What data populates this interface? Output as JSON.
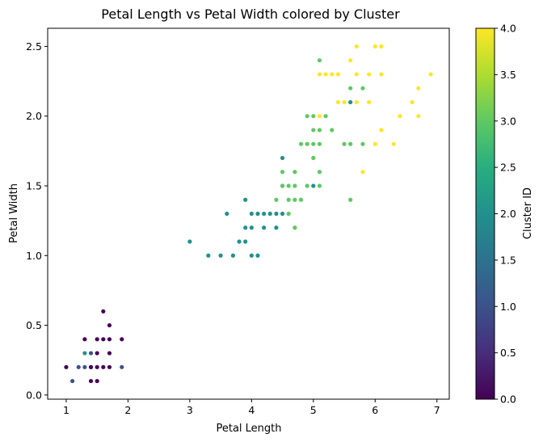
{
  "chart_data": {
    "type": "scatter",
    "title": "Petal Length vs Petal Width colored by Cluster",
    "xlabel": "Petal Length",
    "ylabel": "Petal Width",
    "xlim": [
      0.7,
      7.2
    ],
    "ylim": [
      -0.03,
      2.63
    ],
    "xticks": [
      "1",
      "2",
      "3",
      "4",
      "5",
      "6",
      "7"
    ],
    "yticks": [
      "0.0",
      "0.5",
      "1.0",
      "1.5",
      "2.0",
      "2.5"
    ],
    "colorbar": {
      "label": "Cluster ID",
      "colormap": "viridis",
      "range": [
        0,
        4
      ],
      "ticks": [
        "0.0",
        "0.5",
        "1.0",
        "1.5",
        "2.0",
        "2.5",
        "3.0",
        "3.5",
        "4.0"
      ]
    },
    "points": [
      {
        "x": 1.0,
        "y": 0.2,
        "c": 0
      },
      {
        "x": 1.1,
        "y": 0.1,
        "c": 1
      },
      {
        "x": 1.2,
        "y": 0.2,
        "c": 1
      },
      {
        "x": 1.3,
        "y": 0.2,
        "c": 1
      },
      {
        "x": 1.3,
        "y": 0.3,
        "c": 2
      },
      {
        "x": 1.3,
        "y": 0.4,
        "c": 0
      },
      {
        "x": 1.4,
        "y": 0.1,
        "c": 0
      },
      {
        "x": 1.4,
        "y": 0.2,
        "c": 1
      },
      {
        "x": 1.4,
        "y": 0.3,
        "c": 1
      },
      {
        "x": 1.4,
        "y": 0.2,
        "c": 0
      },
      {
        "x": 1.5,
        "y": 0.1,
        "c": 0
      },
      {
        "x": 1.5,
        "y": 0.2,
        "c": 0
      },
      {
        "x": 1.5,
        "y": 0.3,
        "c": 0
      },
      {
        "x": 1.5,
        "y": 0.4,
        "c": 0
      },
      {
        "x": 1.6,
        "y": 0.2,
        "c": 0
      },
      {
        "x": 1.6,
        "y": 0.4,
        "c": 0
      },
      {
        "x": 1.6,
        "y": 0.6,
        "c": 0
      },
      {
        "x": 1.7,
        "y": 0.2,
        "c": 0
      },
      {
        "x": 1.7,
        "y": 0.3,
        "c": 0
      },
      {
        "x": 1.7,
        "y": 0.4,
        "c": 0
      },
      {
        "x": 1.7,
        "y": 0.5,
        "c": 0
      },
      {
        "x": 1.9,
        "y": 0.2,
        "c": 1
      },
      {
        "x": 1.9,
        "y": 0.4,
        "c": 0
      },
      {
        "x": 3.0,
        "y": 1.1,
        "c": 2
      },
      {
        "x": 3.3,
        "y": 1.0,
        "c": 2
      },
      {
        "x": 3.5,
        "y": 1.0,
        "c": 2
      },
      {
        "x": 3.6,
        "y": 1.3,
        "c": 2
      },
      {
        "x": 3.7,
        "y": 1.0,
        "c": 2
      },
      {
        "x": 3.8,
        "y": 1.1,
        "c": 2
      },
      {
        "x": 3.9,
        "y": 1.1,
        "c": 2
      },
      {
        "x": 3.9,
        "y": 1.2,
        "c": 2
      },
      {
        "x": 3.9,
        "y": 1.4,
        "c": 2
      },
      {
        "x": 4.0,
        "y": 1.0,
        "c": 2
      },
      {
        "x": 4.0,
        "y": 1.2,
        "c": 2
      },
      {
        "x": 4.0,
        "y": 1.3,
        "c": 2
      },
      {
        "x": 4.1,
        "y": 1.0,
        "c": 2
      },
      {
        "x": 4.1,
        "y": 1.3,
        "c": 2
      },
      {
        "x": 4.2,
        "y": 1.2,
        "c": 2
      },
      {
        "x": 4.2,
        "y": 1.3,
        "c": 2
      },
      {
        "x": 4.3,
        "y": 1.3,
        "c": 2
      },
      {
        "x": 4.4,
        "y": 1.2,
        "c": 2
      },
      {
        "x": 4.4,
        "y": 1.3,
        "c": 2
      },
      {
        "x": 4.4,
        "y": 1.4,
        "c": 3
      },
      {
        "x": 4.5,
        "y": 1.3,
        "c": 2
      },
      {
        "x": 4.5,
        "y": 1.5,
        "c": 2
      },
      {
        "x": 4.5,
        "y": 1.6,
        "c": 3
      },
      {
        "x": 4.5,
        "y": 1.7,
        "c": 2
      },
      {
        "x": 4.5,
        "y": 1.5,
        "c": 3
      },
      {
        "x": 4.6,
        "y": 1.3,
        "c": 3
      },
      {
        "x": 4.6,
        "y": 1.4,
        "c": 3
      },
      {
        "x": 4.6,
        "y": 1.5,
        "c": 3
      },
      {
        "x": 4.7,
        "y": 1.2,
        "c": 3
      },
      {
        "x": 4.7,
        "y": 1.4,
        "c": 3
      },
      {
        "x": 4.7,
        "y": 1.5,
        "c": 3
      },
      {
        "x": 4.7,
        "y": 1.6,
        "c": 3
      },
      {
        "x": 4.8,
        "y": 1.4,
        "c": 3
      },
      {
        "x": 4.8,
        "y": 1.8,
        "c": 3
      },
      {
        "x": 4.9,
        "y": 1.5,
        "c": 3
      },
      {
        "x": 4.9,
        "y": 1.8,
        "c": 3
      },
      {
        "x": 4.9,
        "y": 2.0,
        "c": 3
      },
      {
        "x": 5.0,
        "y": 1.5,
        "c": 2
      },
      {
        "x": 5.0,
        "y": 1.7,
        "c": 3
      },
      {
        "x": 5.0,
        "y": 1.8,
        "c": 3
      },
      {
        "x": 5.0,
        "y": 1.9,
        "c": 3
      },
      {
        "x": 5.0,
        "y": 2.0,
        "c": 3
      },
      {
        "x": 5.1,
        "y": 1.5,
        "c": 3
      },
      {
        "x": 5.1,
        "y": 1.6,
        "c": 3
      },
      {
        "x": 5.1,
        "y": 1.8,
        "c": 3
      },
      {
        "x": 5.1,
        "y": 1.9,
        "c": 3
      },
      {
        "x": 5.1,
        "y": 2.0,
        "c": 4
      },
      {
        "x": 5.1,
        "y": 2.3,
        "c": 4
      },
      {
        "x": 5.1,
        "y": 2.4,
        "c": 3
      },
      {
        "x": 5.2,
        "y": 2.0,
        "c": 3
      },
      {
        "x": 5.2,
        "y": 2.3,
        "c": 4
      },
      {
        "x": 5.3,
        "y": 1.9,
        "c": 3
      },
      {
        "x": 5.3,
        "y": 2.3,
        "c": 4
      },
      {
        "x": 5.4,
        "y": 2.1,
        "c": 4
      },
      {
        "x": 5.4,
        "y": 2.3,
        "c": 4
      },
      {
        "x": 5.5,
        "y": 1.8,
        "c": 3
      },
      {
        "x": 5.5,
        "y": 2.1,
        "c": 4
      },
      {
        "x": 5.6,
        "y": 1.4,
        "c": 3
      },
      {
        "x": 5.6,
        "y": 1.8,
        "c": 3
      },
      {
        "x": 5.6,
        "y": 2.1,
        "c": 4
      },
      {
        "x": 5.6,
        "y": 2.1,
        "c": 2
      },
      {
        "x": 5.6,
        "y": 2.2,
        "c": 3
      },
      {
        "x": 5.6,
        "y": 2.4,
        "c": 4
      },
      {
        "x": 5.7,
        "y": 2.1,
        "c": 4
      },
      {
        "x": 5.7,
        "y": 2.3,
        "c": 4
      },
      {
        "x": 5.7,
        "y": 2.5,
        "c": 4
      },
      {
        "x": 5.8,
        "y": 1.6,
        "c": 4
      },
      {
        "x": 5.8,
        "y": 1.8,
        "c": 3
      },
      {
        "x": 5.8,
        "y": 2.2,
        "c": 3
      },
      {
        "x": 5.9,
        "y": 2.1,
        "c": 4
      },
      {
        "x": 5.9,
        "y": 2.3,
        "c": 4
      },
      {
        "x": 6.0,
        "y": 1.8,
        "c": 4
      },
      {
        "x": 6.0,
        "y": 2.5,
        "c": 4
      },
      {
        "x": 6.1,
        "y": 1.9,
        "c": 4
      },
      {
        "x": 6.1,
        "y": 2.3,
        "c": 4
      },
      {
        "x": 6.1,
        "y": 2.5,
        "c": 4
      },
      {
        "x": 6.3,
        "y": 1.8,
        "c": 4
      },
      {
        "x": 6.4,
        "y": 2.0,
        "c": 4
      },
      {
        "x": 6.6,
        "y": 2.1,
        "c": 4
      },
      {
        "x": 6.7,
        "y": 2.0,
        "c": 4
      },
      {
        "x": 6.7,
        "y": 2.2,
        "c": 4
      },
      {
        "x": 6.9,
        "y": 2.3,
        "c": 4
      }
    ]
  }
}
